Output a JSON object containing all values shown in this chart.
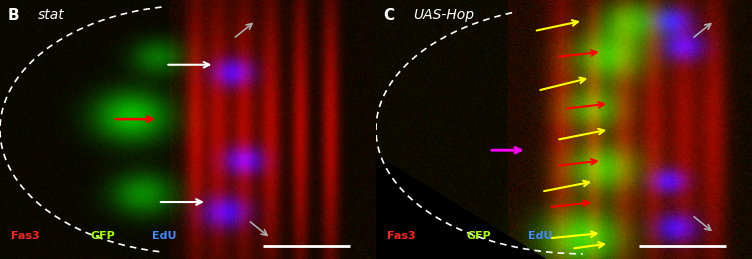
{
  "panel_B_label": "B",
  "panel_B_gene": "stat",
  "panel_C_label": "C",
  "panel_C_gene": "UAS-Hop",
  "legend_labels": [
    "Fas3",
    "GFP",
    "EdU"
  ],
  "legend_colors": [
    "#ff2222",
    "#aaff00",
    "#4488ff"
  ],
  "bg_color": "#000000",
  "scale_bar_color": "#ffffff",
  "label_color": "#ffffff",
  "gene_italic": true,
  "figsize": [
    7.52,
    2.59
  ],
  "dpi": 100
}
